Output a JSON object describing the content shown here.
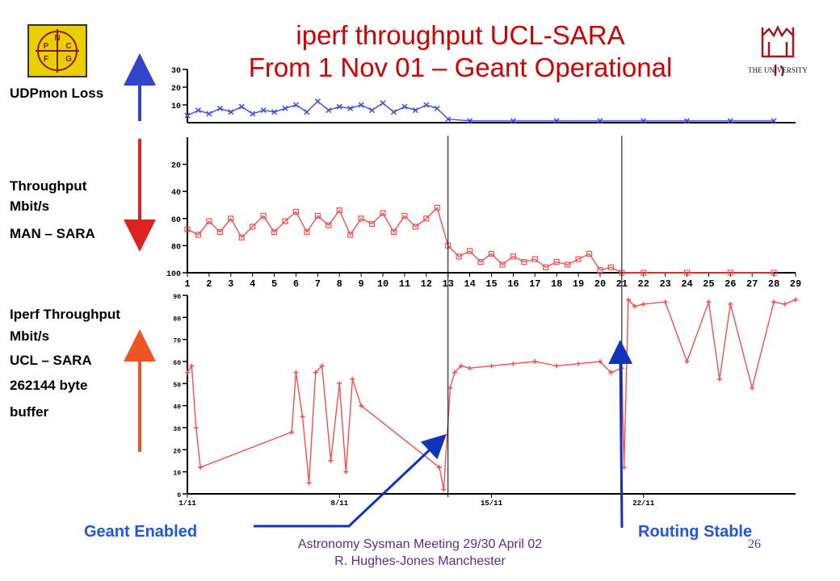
{
  "title_line1": "iperf throughput UCL-SARA",
  "title_line2": "From 1 Nov 01 – Geant Operational",
  "logo_left_letters": [
    "N",
    "P",
    "C",
    "F",
    "G"
  ],
  "logo_right_text": "THE UNIVERSITY",
  "labels": {
    "udpmon": "UDPmon Loss",
    "throughput": [
      "Throughput",
      "Mbit/s",
      "MAN – SARA"
    ],
    "iperf": [
      "Iperf Throughput",
      "Mbit/s",
      "UCL – SARA",
      "262144 byte",
      "buffer"
    ]
  },
  "annotations": {
    "geant": "Geant Enabled",
    "routing": "Routing Stable"
  },
  "footer": [
    "Astronomy Sysman Meeting 29/30 April 02",
    "R. Hughes-Jones  Manchester"
  ],
  "page_number": "26",
  "colors": {
    "title": "#cc0000",
    "udp_series": "#3a4de0",
    "throughput_series": "#f05050",
    "iperf_series": "#f05050",
    "footer": "#5b2e8a",
    "annotation": "#2255dd",
    "arrow_red": "#dd2222",
    "arrow_orange": "#ee5522",
    "arrow_blue": "#3344cc"
  },
  "chart_data": [
    {
      "type": "line",
      "name": "udpmon-loss",
      "y_ticks": [
        "30",
        "20",
        "10"
      ],
      "ylim": [
        0,
        30
      ],
      "x_range": [
        1,
        29
      ],
      "series": [
        {
          "values_x": [
            1,
            1.5,
            2,
            2.5,
            3,
            3.5,
            4,
            4.5,
            5,
            5.5,
            6,
            6.5,
            7,
            7.5,
            8,
            8.5,
            9,
            9.5,
            10,
            10.5,
            11,
            11.5,
            12,
            12.5,
            13,
            14,
            16,
            18,
            20,
            22,
            24,
            26,
            28
          ],
          "values_y": [
            4,
            7,
            5,
            8,
            6,
            9,
            5,
            7,
            6,
            8,
            10,
            6,
            12,
            7,
            9,
            8,
            10,
            7,
            11,
            6,
            9,
            7,
            10,
            8,
            2,
            1,
            1,
            1,
            1,
            1,
            1,
            1,
            1
          ]
        }
      ]
    },
    {
      "type": "line",
      "name": "throughput-man-sara",
      "y_ticks": [
        "20",
        "40",
        "60",
        "80",
        "100"
      ],
      "ylim": [
        0,
        100
      ],
      "x_ticks": [
        "1",
        "2",
        "3",
        "4",
        "5",
        "6",
        "7",
        "8",
        "9",
        "10",
        "11",
        "12",
        "13",
        "14",
        "15",
        "16",
        "17",
        "18",
        "19",
        "20",
        "21",
        "22",
        "23",
        "24",
        "25",
        "26",
        "27",
        "28",
        "29"
      ],
      "x_range": [
        1,
        29
      ],
      "series": [
        {
          "values_x": [
            1,
            1.5,
            2,
            2.5,
            3,
            3.5,
            4,
            4.5,
            5,
            5.5,
            6,
            6.5,
            7,
            7.5,
            8,
            8.5,
            9,
            9.5,
            10,
            10.5,
            11,
            11.5,
            12,
            12.5,
            13,
            13.5,
            14,
            14.5,
            15,
            15.5,
            16,
            16.5,
            17,
            17.5,
            18,
            18.5,
            19,
            19.5,
            20,
            20.5,
            21,
            22,
            24,
            26,
            28
          ],
          "values_y": [
            68,
            72,
            62,
            70,
            60,
            74,
            66,
            58,
            70,
            62,
            55,
            70,
            58,
            65,
            54,
            72,
            60,
            64,
            56,
            70,
            58,
            66,
            60,
            52,
            80,
            88,
            84,
            92,
            86,
            94,
            88,
            92,
            90,
            96,
            92,
            94,
            90,
            86,
            98,
            96,
            100,
            100,
            100,
            100,
            100
          ]
        }
      ]
    },
    {
      "type": "line",
      "name": "iperf-throughput-ucl-sara",
      "y_ticks": [
        "90",
        "80",
        "70",
        "60",
        "50",
        "40",
        "30",
        "20",
        "10",
        "0"
      ],
      "ylim": [
        0,
        90
      ],
      "x_ticks": [
        "1/11",
        "8/11",
        "15/11",
        "22/11"
      ],
      "x_range": [
        1,
        29
      ],
      "series": [
        {
          "values_x": [
            1,
            1.2,
            1.4,
            1.6,
            5.8,
            6,
            6.3,
            6.6,
            6.9,
            7.2,
            7.6,
            8,
            8.3,
            8.6,
            9,
            12.6,
            12.8,
            13.1,
            13.3,
            13.6,
            14,
            15,
            16,
            17,
            18,
            19,
            20,
            20.5,
            21,
            21.1,
            21.3,
            21.6,
            22,
            23,
            24,
            25,
            25.5,
            26,
            27,
            28,
            28.5,
            29
          ],
          "values_y": [
            55,
            58,
            30,
            12,
            28,
            55,
            35,
            5,
            55,
            58,
            15,
            50,
            10,
            52,
            40,
            12,
            2,
            48,
            55,
            58,
            57,
            58,
            59,
            60,
            58,
            59,
            60,
            55,
            57,
            12,
            88,
            85,
            86,
            87,
            60,
            87,
            52,
            86,
            48,
            87,
            86,
            88
          ]
        }
      ]
    }
  ]
}
